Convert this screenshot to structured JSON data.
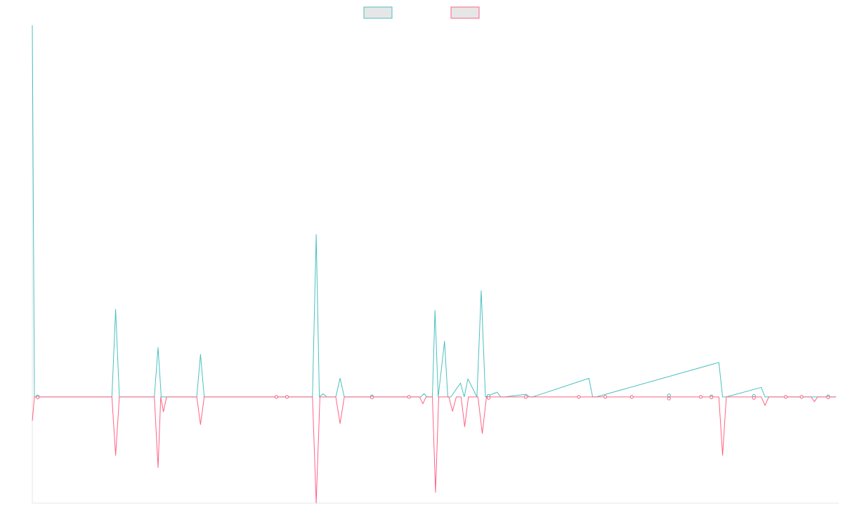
{
  "colors": {
    "series_up": "#4bc0c0",
    "series_down": "#ff6384",
    "axis": "#e6e6e6",
    "legend_fill": "#e6e6e6"
  },
  "legend": {
    "position": "top-center",
    "entries": [
      {
        "label": "",
        "color": "#4bc0c0"
      },
      {
        "label": "",
        "color": "#ff6384"
      }
    ]
  },
  "chart_data": {
    "type": "line",
    "title": "",
    "xlabel": "",
    "ylabel": "",
    "grid": false,
    "xlim": [
      0,
      152
    ],
    "ylim": [
      -20,
      70
    ],
    "points_shown": [
      1,
      46,
      48,
      64,
      71,
      86,
      93,
      103,
      108,
      113,
      120,
      126,
      128,
      136,
      142,
      145,
      150
    ],
    "series": [
      {
        "name": "",
        "color": "#4bc0c0",
        "x": [
          0,
          0.4,
          1,
          15,
          15.7,
          16.4,
          23,
          23.7,
          24.3,
          25,
          31,
          31.7,
          32.4,
          52.8,
          53.5,
          54.1,
          54.8,
          55.5,
          57.2,
          58,
          58.8,
          73.2,
          73.8,
          74.4,
          75.4,
          75.9,
          76.5,
          77.7,
          78.3,
          78.9,
          80.7,
          81.4,
          82.1,
          83.8,
          84.6,
          85.4,
          87.6,
          88.3,
          89,
          93.1,
          93.7,
          94.3,
          104.9,
          105.6,
          106.3,
          129.4,
          130.1,
          130.8,
          137.4,
          138.1,
          138.8,
          151.5
        ],
        "values": [
          70,
          0,
          0,
          0,
          16.5,
          0,
          0,
          9.3,
          0,
          0,
          0,
          8,
          0,
          0,
          30.6,
          0,
          0.6,
          0,
          0,
          3.5,
          0,
          0,
          0.6,
          0,
          0,
          16.3,
          0,
          10.5,
          0,
          0,
          2.6,
          0,
          3.4,
          0,
          20,
          0,
          0.9,
          0,
          0,
          0.5,
          0,
          0,
          3.5,
          0,
          0,
          6.5,
          0,
          0,
          1.8,
          0,
          0,
          0
        ],
        "points": [
          0.1,
          0,
          0,
          0.1,
          0,
          0.2,
          0,
          0,
          0,
          0,
          0.3,
          0,
          0.1,
          0.2,
          0,
          0,
          0.1
        ]
      },
      {
        "name": "",
        "color": "#ff6384",
        "x": [
          0,
          0.4,
          1,
          15,
          15.7,
          16.4,
          23,
          23.7,
          24.2,
          24.7,
          25.3,
          31,
          31.7,
          32.4,
          52.8,
          53.5,
          54.2,
          57.2,
          58,
          58.8,
          73,
          73.6,
          74.2,
          75.4,
          76,
          76.6,
          78.5,
          79.2,
          79.9,
          80.8,
          81.5,
          82.2,
          84,
          84.8,
          85.6,
          129.4,
          130.1,
          130.8,
          137.4,
          138.1,
          138.8,
          146.8,
          147.4,
          148,
          151.5
        ],
        "values": [
          -4.5,
          0,
          0,
          0,
          -11,
          0,
          0,
          -13.3,
          0,
          -2.8,
          0,
          0,
          -5.2,
          0,
          0,
          -20,
          0,
          0,
          -5,
          0,
          0,
          -1.3,
          0,
          0,
          -18,
          0,
          0,
          -2.7,
          0,
          0,
          -5.6,
          0,
          0,
          -6.9,
          0,
          0,
          -11,
          0,
          0,
          -1.6,
          0,
          0,
          -0.9,
          0,
          0
        ],
        "points": [
          -0.1,
          0,
          0,
          -0.1,
          0,
          -0.2,
          0,
          0,
          0,
          0,
          -0.3,
          0,
          -0.1,
          -0.2,
          0,
          0,
          -0.1
        ]
      }
    ]
  }
}
